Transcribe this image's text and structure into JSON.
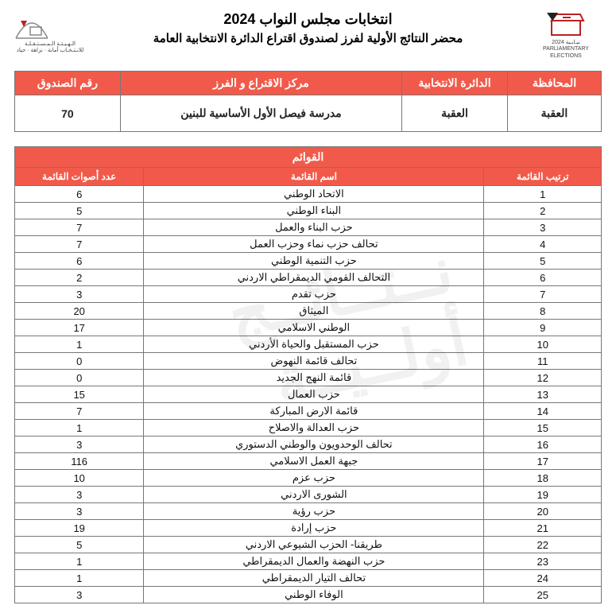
{
  "titles": {
    "main": "انتخابات مجلس النواب 2024",
    "sub": "محضر النتائج الأولية لفرز لصندوق اقتراع الدائرة الانتخابية العامة"
  },
  "info_headers": {
    "governorate": "المحافظة",
    "district": "الدائرة الانتخابية",
    "center": "مركز الاقتراع و الفرز",
    "box": "رقم الصندوق"
  },
  "info_values": {
    "governorate": "العقبة",
    "district": "العقبة",
    "center": "مدرسة فيصل الأول الأساسية للبنين",
    "box": "70"
  },
  "lists_title": "القوائم",
  "lists_headers": {
    "rank": "ترتيب القائمة",
    "name": "اسم القائمة",
    "votes": "عدد أصوات القائمة"
  },
  "lists": [
    {
      "rank": 1,
      "name": "الاتحاد الوطني",
      "votes": 6
    },
    {
      "rank": 2,
      "name": "البناء الوطني",
      "votes": 5
    },
    {
      "rank": 3,
      "name": "حزب البناء والعمل",
      "votes": 7
    },
    {
      "rank": 4,
      "name": "تحالف حزب نماء وحزب العمل",
      "votes": 7
    },
    {
      "rank": 5,
      "name": "حزب التنمية الوطني",
      "votes": 6
    },
    {
      "rank": 6,
      "name": "التحالف القومي الديمقراطي الاردني",
      "votes": 2
    },
    {
      "rank": 7,
      "name": "حزب تقدم",
      "votes": 3
    },
    {
      "rank": 8,
      "name": "الميثاق",
      "votes": 20
    },
    {
      "rank": 9,
      "name": "الوطني الاسلامي",
      "votes": 17
    },
    {
      "rank": 10,
      "name": "حزب المستقبل والحياة الأردني",
      "votes": 1
    },
    {
      "rank": 11,
      "name": "تحالف قائمة النهوض",
      "votes": 0
    },
    {
      "rank": 12,
      "name": "قائمة النهج الجديد",
      "votes": 0
    },
    {
      "rank": 13,
      "name": "حزب العمال",
      "votes": 15
    },
    {
      "rank": 14,
      "name": "قائمة الارض المباركة",
      "votes": 7
    },
    {
      "rank": 15,
      "name": "حزب العدالة والاصلاح",
      "votes": 1
    },
    {
      "rank": 16,
      "name": "تحالف الوحدويون والوطني الدستوري",
      "votes": 3
    },
    {
      "rank": 17,
      "name": "جبهة العمل الاسلامي",
      "votes": 116
    },
    {
      "rank": 18,
      "name": "حزب عزم",
      "votes": 10
    },
    {
      "rank": 19,
      "name": "الشورى الاردني",
      "votes": 3
    },
    {
      "rank": 20,
      "name": "حزب رؤية",
      "votes": 3
    },
    {
      "rank": 21,
      "name": "حزب إرادة",
      "votes": 19
    },
    {
      "rank": 22,
      "name": "طريقنا- الحزب الشيوعي الاردني",
      "votes": 5
    },
    {
      "rank": 23,
      "name": "حزب النهضة والعمال الديمقراطي",
      "votes": 1
    },
    {
      "rank": 24,
      "name": "تحالف التيار الديمقراطي",
      "votes": 1
    },
    {
      "rank": 25,
      "name": "الوفاء الوطني",
      "votes": 3
    }
  ],
  "logos": {
    "left_caption": "نيـابـية\n2024\nPARLIAMENTARY ELECTIONS",
    "right_caption": "الـهـيـئـة الـمـسـتـقـلـة\nللانـتـخـاب\nأمانة · نزاهة · حياد"
  },
  "watermark": "نــتــائــج أولــيــة",
  "colors": {
    "accent": "#f15a4a",
    "border": "#777777",
    "text": "#111111",
    "bg": "#ffffff"
  }
}
